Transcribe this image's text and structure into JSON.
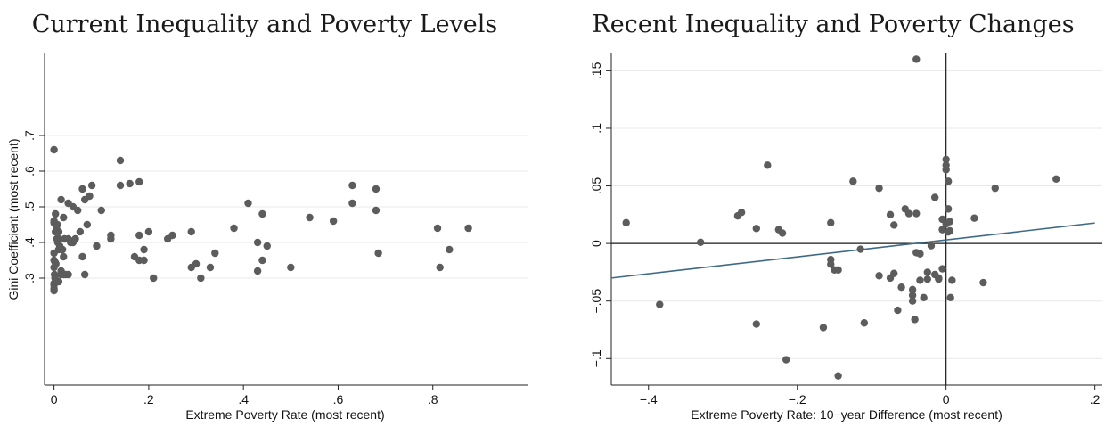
{
  "chart_data": [
    {
      "type": "scatter",
      "title": "Current Inequality and Poverty Levels",
      "xlabel": "Extreme Poverty Rate (most recent)",
      "ylabel": "Gini Coefficient (most recent)",
      "xlim": [
        -0.02,
        1.0
      ],
      "ylim": [
        0.0,
        0.93
      ],
      "xticks": [
        "0",
        ".2",
        ".4",
        ".6",
        ".8"
      ],
      "xtick_values": [
        0,
        0.2,
        0.4,
        0.6,
        0.8
      ],
      "yticks": [
        ".3",
        ".4",
        ".5",
        ".6",
        ".7"
      ],
      "ytick_values": [
        0.3,
        0.4,
        0.5,
        0.6,
        0.7
      ],
      "grid": true,
      "marker_color": "#5c5c5c",
      "x": [
        0.0,
        0.0,
        0.0,
        0.005,
        0.003,
        0.006,
        0.008,
        0.01,
        0.0,
        0.0,
        0.002,
        0.004,
        0.0,
        0.001,
        0.002,
        0.005,
        0.0,
        0.0,
        0.0,
        0.0,
        0.003,
        0.007,
        0.01,
        0.012,
        0.015,
        0.018,
        0.02,
        0.022,
        0.025,
        0.03,
        0.035,
        0.04,
        0.045,
        0.05,
        0.055,
        0.06,
        0.065,
        0.07,
        0.075,
        0.08,
        0.09,
        0.1,
        0.12,
        0.12,
        0.14,
        0.14,
        0.16,
        0.18,
        0.17,
        0.18,
        0.19,
        0.19,
        0.2,
        0.18,
        0.21,
        0.24,
        0.25,
        0.29,
        0.29,
        0.3,
        0.31,
        0.33,
        0.34,
        0.38,
        0.41,
        0.44,
        0.43,
        0.44,
        0.45,
        0.43,
        0.5,
        0.54,
        0.59,
        0.63,
        0.63,
        0.68,
        0.68,
        0.685,
        0.81,
        0.815,
        0.835,
        0.875,
        0.01,
        0.015,
        0.02,
        0.02,
        0.03,
        0.03,
        0.04,
        0.01,
        0.06,
        0.065,
        0.015
      ],
      "y": [
        0.66,
        0.46,
        0.455,
        0.44,
        0.43,
        0.41,
        0.4,
        0.38,
        0.37,
        0.35,
        0.345,
        0.34,
        0.33,
        0.31,
        0.3,
        0.29,
        0.285,
        0.28,
        0.27,
        0.265,
        0.48,
        0.45,
        0.41,
        0.39,
        0.52,
        0.38,
        0.47,
        0.41,
        0.31,
        0.51,
        0.4,
        0.5,
        0.41,
        0.49,
        0.43,
        0.55,
        0.52,
        0.45,
        0.53,
        0.56,
        0.39,
        0.49,
        0.42,
        0.41,
        0.63,
        0.56,
        0.565,
        0.57,
        0.36,
        0.42,
        0.38,
        0.35,
        0.43,
        0.35,
        0.3,
        0.41,
        0.42,
        0.33,
        0.43,
        0.34,
        0.3,
        0.33,
        0.37,
        0.44,
        0.51,
        0.48,
        0.32,
        0.35,
        0.39,
        0.4,
        0.33,
        0.47,
        0.46,
        0.56,
        0.51,
        0.49,
        0.55,
        0.37,
        0.44,
        0.33,
        0.38,
        0.44,
        0.43,
        0.31,
        0.31,
        0.36,
        0.31,
        0.41,
        0.4,
        0.29,
        0.36,
        0.31,
        0.32
      ]
    },
    {
      "type": "scatter",
      "title": "Recent Inequality and Poverty Changes",
      "xlabel": "Extreme Poverty Rate: 10−year Difference (most recent)",
      "ylabel": "",
      "xlim": [
        -0.45,
        0.21
      ],
      "ylim": [
        -0.123,
        0.165
      ],
      "xticks": [
        "−.4",
        "−.2",
        "0",
        ".2"
      ],
      "xtick_values": [
        -0.4,
        -0.2,
        0,
        0.2
      ],
      "yticks": [
        "−.1",
        "−.05",
        "0",
        ".05",
        ".1",
        ".15"
      ],
      "ytick_values": [
        -0.1,
        -0.05,
        0,
        0.05,
        0.1,
        0.15
      ],
      "grid": true,
      "marker_color": "#5c5c5c",
      "fit_line": {
        "x": [
          -0.45,
          0.2
        ],
        "y": [
          -0.03,
          0.0178
        ],
        "color": "#3d6a85"
      },
      "reference_lines": {
        "x": 0,
        "y": 0
      },
      "x": [
        -0.43,
        -0.385,
        -0.33,
        -0.28,
        -0.275,
        -0.255,
        -0.255,
        -0.24,
        -0.225,
        -0.22,
        -0.215,
        -0.165,
        -0.155,
        -0.155,
        -0.155,
        -0.15,
        -0.145,
        -0.145,
        -0.125,
        -0.115,
        -0.11,
        -0.09,
        -0.09,
        -0.075,
        -0.075,
        -0.07,
        -0.07,
        -0.065,
        -0.06,
        -0.055,
        -0.05,
        -0.045,
        -0.045,
        -0.045,
        -0.04,
        -0.04,
        -0.042,
        -0.035,
        -0.035,
        -0.03,
        -0.025,
        -0.025,
        -0.02,
        -0.015,
        -0.015,
        -0.01,
        -0.01,
        -0.005,
        -0.005,
        0.0,
        0.0,
        0.0,
        0.0,
        0.003,
        0.003,
        0.003,
        0.005,
        0.005,
        0.006,
        0.008,
        0.038,
        0.05,
        0.066,
        0.148,
        -0.04,
        -0.005
      ],
      "y": [
        0.018,
        -0.053,
        0.001,
        0.024,
        0.027,
        0.013,
        -0.07,
        0.068,
        0.012,
        0.009,
        -0.101,
        -0.073,
        0.018,
        -0.014,
        -0.018,
        -0.023,
        -0.115,
        -0.023,
        0.054,
        -0.005,
        -0.069,
        0.048,
        -0.028,
        0.025,
        -0.03,
        0.016,
        -0.026,
        -0.058,
        -0.038,
        0.03,
        0.026,
        -0.05,
        -0.04,
        -0.045,
        0.16,
        -0.008,
        -0.066,
        -0.009,
        -0.032,
        -0.047,
        -0.031,
        -0.025,
        -0.002,
        0.04,
        -0.027,
        -0.03,
        -0.031,
        0.021,
        -0.022,
        0.073,
        0.068,
        0.064,
        0.017,
        0.054,
        0.03,
        0.01,
        0.011,
        0.019,
        -0.047,
        -0.032,
        0.022,
        -0.034,
        0.048,
        0.056,
        0.026,
        0.012
      ]
    }
  ]
}
